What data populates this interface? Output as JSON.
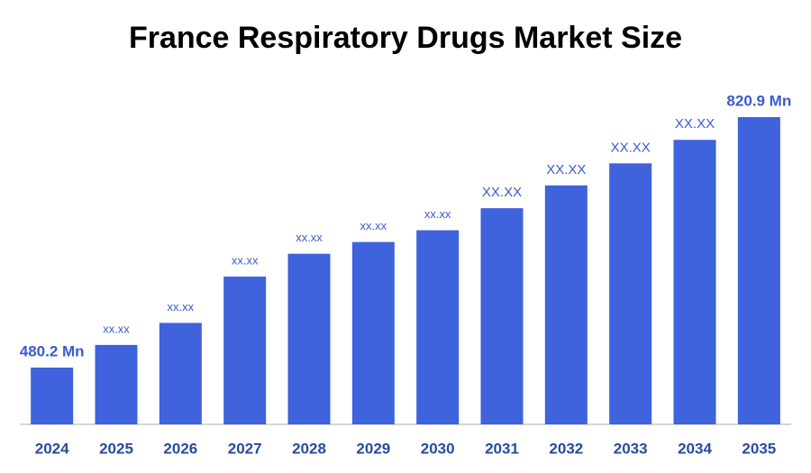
{
  "chart_data": {
    "type": "bar",
    "title": "France Respiratory Drugs Market Size",
    "categories": [
      "2024",
      "2025",
      "2026",
      "2027",
      "2028",
      "2029",
      "2030",
      "2031",
      "2032",
      "2033",
      "2034",
      "2035"
    ],
    "values": [
      480.2,
      511,
      541,
      604,
      635,
      651,
      667,
      697,
      728,
      758,
      790,
      820.9
    ],
    "value_labels": [
      "480.2 Mn",
      "xx.xx",
      "xx.xx",
      "xx.xx",
      "xx.xx",
      "xx.xx",
      "xx.xx",
      "XX.XX",
      "XX.XX",
      "XX.XX",
      "XX.XX",
      "820.9 Mn"
    ],
    "color": "#3f62dd"
  }
}
